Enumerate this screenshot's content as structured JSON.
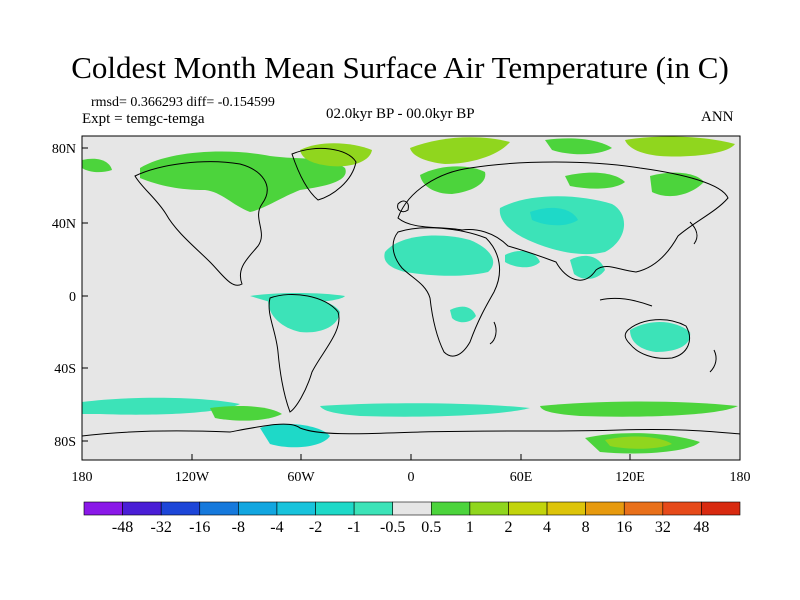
{
  "title": "Coldest Month Mean Surface Air Temperature (in C)",
  "stats": "rmsd= 0.366293 diff= -0.154599",
  "expt": "Expt = temgc-temga",
  "period": "02.0kyr BP - 00.0kyr BP",
  "season": "ANN",
  "lat_labels": [
    "80N",
    "40N",
    "0",
    "40S",
    "80S"
  ],
  "lon_labels": [
    "180",
    "120W",
    "60W",
    "0",
    "60E",
    "120E",
    "180"
  ],
  "colorbar": {
    "labels": [
      "-48",
      "-32",
      "-16",
      "-8",
      "-4",
      "-2",
      "-1",
      "-0.5",
      "0.5",
      "1",
      "2",
      "4",
      "8",
      "16",
      "32",
      "48"
    ],
    "colors": [
      "#8a18e8",
      "#4a1ed6",
      "#1d46d8",
      "#1679dc",
      "#12a6e0",
      "#18c3dc",
      "#1ed9c8",
      "#3ce3b8",
      "#e6e6e6",
      "#4cd43c",
      "#90d61e",
      "#c2d40c",
      "#ddc40a",
      "#e79a0e",
      "#e9701a",
      "#e64a1a",
      "#d82a10"
    ]
  },
  "colors": {
    "background": "#e6e6e6",
    "coast": "#000000"
  }
}
